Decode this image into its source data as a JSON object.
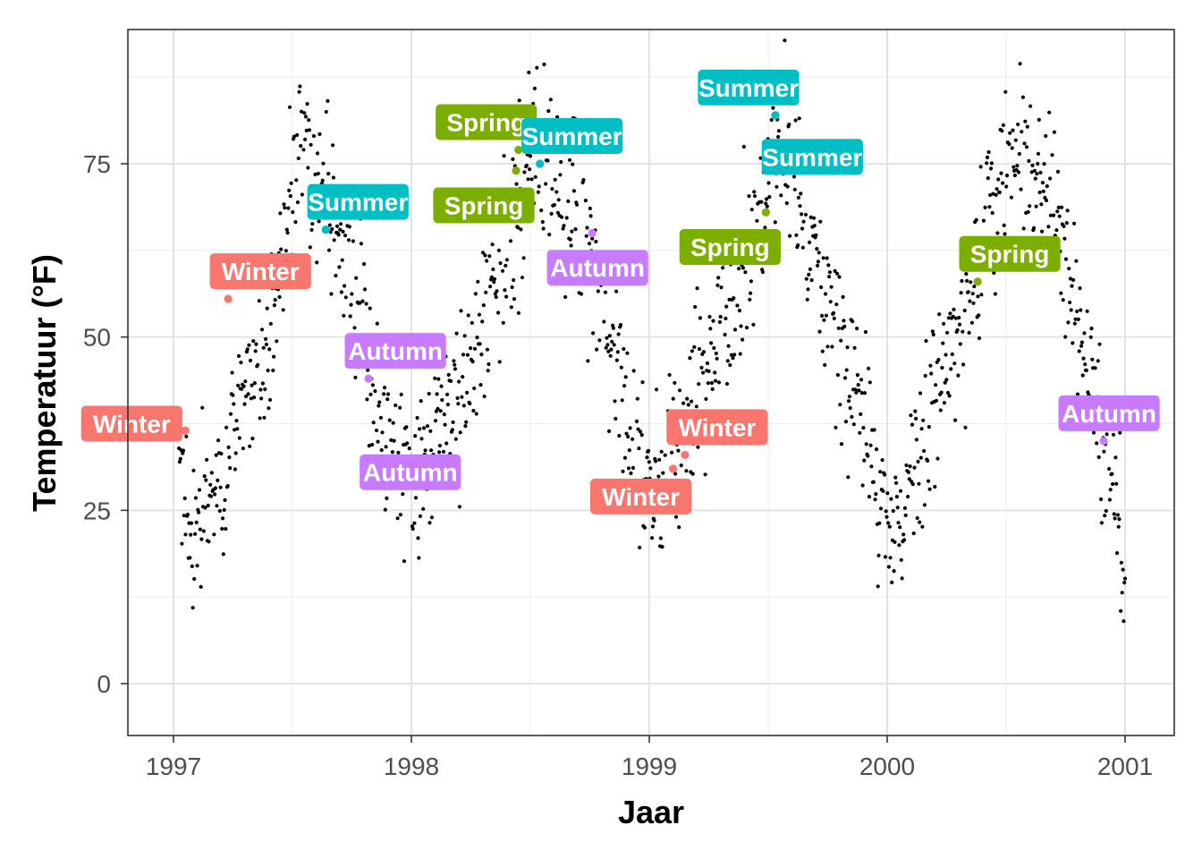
{
  "chart_data": {
    "type": "scatter",
    "xlabel": "Jaar",
    "ylabel": "Temperatuur (°F)",
    "xlim": [
      1996.83,
      2001.2
    ],
    "ylim": [
      -7,
      94
    ],
    "x_ticks": [
      {
        "value": 1997,
        "label": "1997"
      },
      {
        "value": 1998,
        "label": "1998"
      },
      {
        "value": 1999,
        "label": "1999"
      },
      {
        "value": 2000,
        "label": "2000"
      },
      {
        "value": 2001,
        "label": "2001"
      }
    ],
    "y_ticks": [
      {
        "value": 0,
        "label": "0"
      },
      {
        "value": 25,
        "label": "25"
      },
      {
        "value": 50,
        "label": "50"
      },
      {
        "value": 75,
        "label": "75"
      }
    ],
    "grid": true,
    "season_colors": {
      "Winter": "#f8766d",
      "Spring": "#7cae00",
      "Summer": "#00bfc4",
      "Autumn": "#c77cff"
    },
    "daily_series": {
      "point_color": "#000000",
      "anchors": [
        [
          1997.02,
          33
        ],
        [
          1997.08,
          21
        ],
        [
          1997.15,
          27
        ],
        [
          1997.25,
          36
        ],
        [
          1997.32,
          42
        ],
        [
          1997.4,
          48
        ],
        [
          1997.48,
          66
        ],
        [
          1997.55,
          78
        ],
        [
          1997.62,
          70
        ],
        [
          1997.7,
          65
        ],
        [
          1997.78,
          56
        ],
        [
          1997.85,
          41
        ],
        [
          1997.92,
          33
        ],
        [
          1998.0,
          31
        ],
        [
          1998.08,
          34
        ],
        [
          1998.16,
          38
        ],
        [
          1998.24,
          44
        ],
        [
          1998.32,
          54
        ],
        [
          1998.4,
          63
        ],
        [
          1998.48,
          74
        ],
        [
          1998.56,
          77
        ],
        [
          1998.64,
          74
        ],
        [
          1998.72,
          67
        ],
        [
          1998.8,
          55
        ],
        [
          1998.88,
          44
        ],
        [
          1998.96,
          30
        ],
        [
          1999.04,
          27
        ],
        [
          1999.12,
          33
        ],
        [
          1999.2,
          40
        ],
        [
          1999.28,
          46
        ],
        [
          1999.36,
          56
        ],
        [
          1999.44,
          65
        ],
        [
          1999.52,
          75
        ],
        [
          1999.58,
          78
        ],
        [
          1999.66,
          68
        ],
        [
          1999.74,
          58
        ],
        [
          1999.82,
          47
        ],
        [
          1999.9,
          38
        ],
        [
          1999.98,
          27
        ],
        [
          2000.06,
          23
        ],
        [
          2000.14,
          34
        ],
        [
          2000.22,
          44
        ],
        [
          2000.3,
          51
        ],
        [
          2000.38,
          60
        ],
        [
          2000.46,
          71
        ],
        [
          2000.54,
          74
        ],
        [
          2000.62,
          73
        ],
        [
          2000.7,
          68
        ],
        [
          2000.78,
          56
        ],
        [
          2000.86,
          44
        ],
        [
          2000.94,
          29
        ],
        [
          2001.0,
          15
        ]
      ]
    },
    "labeled_points": [
      {
        "season": "Winter",
        "label": "Winter",
        "x": 1997.05,
        "y": 36.5
      },
      {
        "season": "Winter",
        "label": "Winter",
        "x": 1997.23,
        "y": 55.5
      },
      {
        "season": "Summer",
        "label": "Summer",
        "x": 1997.64,
        "y": 65.5
      },
      {
        "season": "Autumn",
        "label": "Autumn",
        "x": 1997.82,
        "y": 44
      },
      {
        "season": "Autumn",
        "label": "Autumn",
        "x": 1997.86,
        "y": 28.5
      },
      {
        "season": "Spring",
        "label": "Spring",
        "x": 1998.45,
        "y": 77
      },
      {
        "season": "Spring",
        "label": "Spring",
        "x": 1998.44,
        "y": 74
      },
      {
        "season": "Summer",
        "label": "Summer",
        "x": 1998.54,
        "y": 75
      },
      {
        "season": "Autumn",
        "label": "Autumn",
        "x": 1998.76,
        "y": 65
      },
      {
        "season": "Winter",
        "label": "Winter",
        "x": 1999.1,
        "y": 31
      },
      {
        "season": "Winter",
        "label": "Winter",
        "x": 1999.15,
        "y": 33
      },
      {
        "season": "Spring",
        "label": "Spring",
        "x": 1999.49,
        "y": 68
      },
      {
        "season": "Summer",
        "label": "Summer",
        "x": 1999.53,
        "y": 82
      },
      {
        "season": "Summer",
        "label": "Summer",
        "x": 1999.52,
        "y": 74
      },
      {
        "season": "Spring",
        "label": "Spring",
        "x": 2000.38,
        "y": 58
      },
      {
        "season": "Autumn",
        "label": "Autumn",
        "x": 2000.91,
        "y": 35
      }
    ],
    "label_placement": [
      {
        "dx": -3,
        "dy": 1
      },
      {
        "dx": 1.8,
        "dy": 4
      },
      {
        "dx": 1.8,
        "dy": 4
      },
      {
        "dx": 1.5,
        "dy": 4
      },
      {
        "dx": 1.8,
        "dy": 2
      },
      {
        "dx": -1.8,
        "dy": 4
      },
      {
        "dx": -1.8,
        "dy": -5
      },
      {
        "dx": 1.8,
        "dy": 4
      },
      {
        "dx": 0.3,
        "dy": -5
      },
      {
        "dx": -1.8,
        "dy": -4
      },
      {
        "dx": 1.8,
        "dy": 4
      },
      {
        "dx": -2,
        "dy": -5
      },
      {
        "dx": -1.5,
        "dy": 4
      },
      {
        "dx": 2.2,
        "dy": 2
      },
      {
        "dx": 1.8,
        "dy": 4
      },
      {
        "dx": 0.3,
        "dy": 4
      }
    ]
  }
}
